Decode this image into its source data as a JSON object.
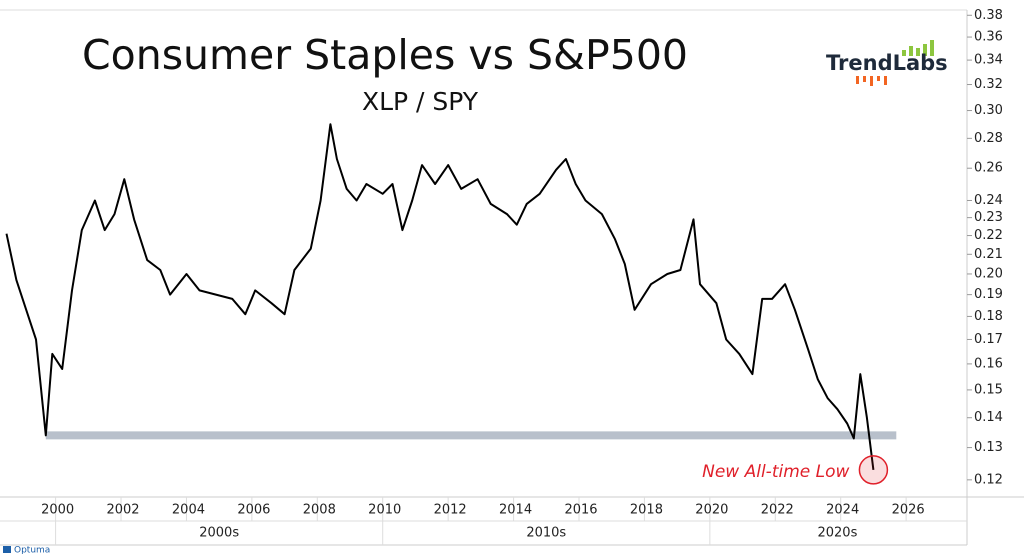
{
  "chart_data": {
    "type": "line",
    "title": "Consumer Staples vs S&P500",
    "subtitle": "XLP / SPY",
    "brand": "TrendLabs",
    "footer": "Optuma",
    "annotation": "New All-time Low",
    "log_scale": true,
    "xlim": [
      1998.3,
      2027.8
    ],
    "xticks": [
      2000,
      2002,
      2004,
      2006,
      2008,
      2010,
      2012,
      2014,
      2016,
      2018,
      2020,
      2022,
      2024,
      2026
    ],
    "decades": [
      {
        "value": 2000,
        "label": "2000s"
      },
      {
        "value": 2010,
        "label": "2010s"
      },
      {
        "value": 2020,
        "label": "2020s"
      }
    ],
    "ylim": [
      0.115,
      0.385
    ],
    "yticks": [
      0.12,
      0.13,
      0.14,
      0.15,
      0.16,
      0.17,
      0.18,
      0.19,
      {
        "value": 0.2,
        "label": "0.20"
      },
      0.21,
      0.22,
      0.23,
      0.24,
      0.26,
      0.28,
      {
        "value": 0.3,
        "label": "0.30"
      },
      0.32,
      0.34,
      0.36,
      0.38
    ],
    "support_level": 0.134,
    "support_x": [
      1999.7,
      2025.7
    ],
    "support_color": "#b8c0cb",
    "annotation_color": "#e0202a",
    "x": [
      1998.5,
      1998.8,
      1999.1,
      1999.4,
      1999.7,
      1999.9,
      2000.2,
      2000.5,
      2000.8,
      2001.2,
      2001.5,
      2001.8,
      2002.1,
      2002.4,
      2002.8,
      2003.2,
      2003.5,
      2004.0,
      2004.4,
      2004.9,
      2005.4,
      2005.8,
      2006.1,
      2006.6,
      2007.0,
      2007.3,
      2007.8,
      2008.1,
      2008.4,
      2008.6,
      2008.9,
      2009.2,
      2009.5,
      2010.0,
      2010.3,
      2010.6,
      2010.9,
      2011.2,
      2011.6,
      2012.0,
      2012.4,
      2012.9,
      2013.3,
      2013.8,
      2014.1,
      2014.4,
      2014.8,
      2015.3,
      2015.6,
      2015.9,
      2016.2,
      2016.7,
      2017.1,
      2017.4,
      2017.7,
      2018.2,
      2018.7,
      2019.1,
      2019.5,
      2019.7,
      2020.2,
      2020.5,
      2020.9,
      2021.3,
      2021.6,
      2021.9,
      2022.3,
      2022.6,
      2023.0,
      2023.3,
      2023.6,
      2023.9,
      2024.2,
      2024.4,
      2024.6,
      2024.8,
      2025.0
    ],
    "series": [
      {
        "name": "XLP / SPY",
        "color": "#000000",
        "values": [
          0.221,
          0.197,
          0.183,
          0.17,
          0.134,
          0.164,
          0.158,
          0.192,
          0.223,
          0.24,
          0.223,
          0.232,
          0.253,
          0.229,
          0.207,
          0.202,
          0.19,
          0.2,
          0.192,
          0.19,
          0.188,
          0.181,
          0.192,
          0.186,
          0.181,
          0.202,
          0.213,
          0.24,
          0.29,
          0.266,
          0.247,
          0.24,
          0.25,
          0.244,
          0.25,
          0.223,
          0.24,
          0.262,
          0.25,
          0.262,
          0.247,
          0.253,
          0.238,
          0.232,
          0.226,
          0.238,
          0.244,
          0.259,
          0.266,
          0.25,
          0.24,
          0.232,
          0.218,
          0.205,
          0.183,
          0.195,
          0.2,
          0.202,
          0.229,
          0.195,
          0.186,
          0.17,
          0.164,
          0.156,
          0.188,
          0.188,
          0.195,
          0.183,
          0.166,
          0.154,
          0.147,
          0.143,
          0.138,
          0.133,
          0.156,
          0.14,
          0.123
        ]
      }
    ]
  }
}
